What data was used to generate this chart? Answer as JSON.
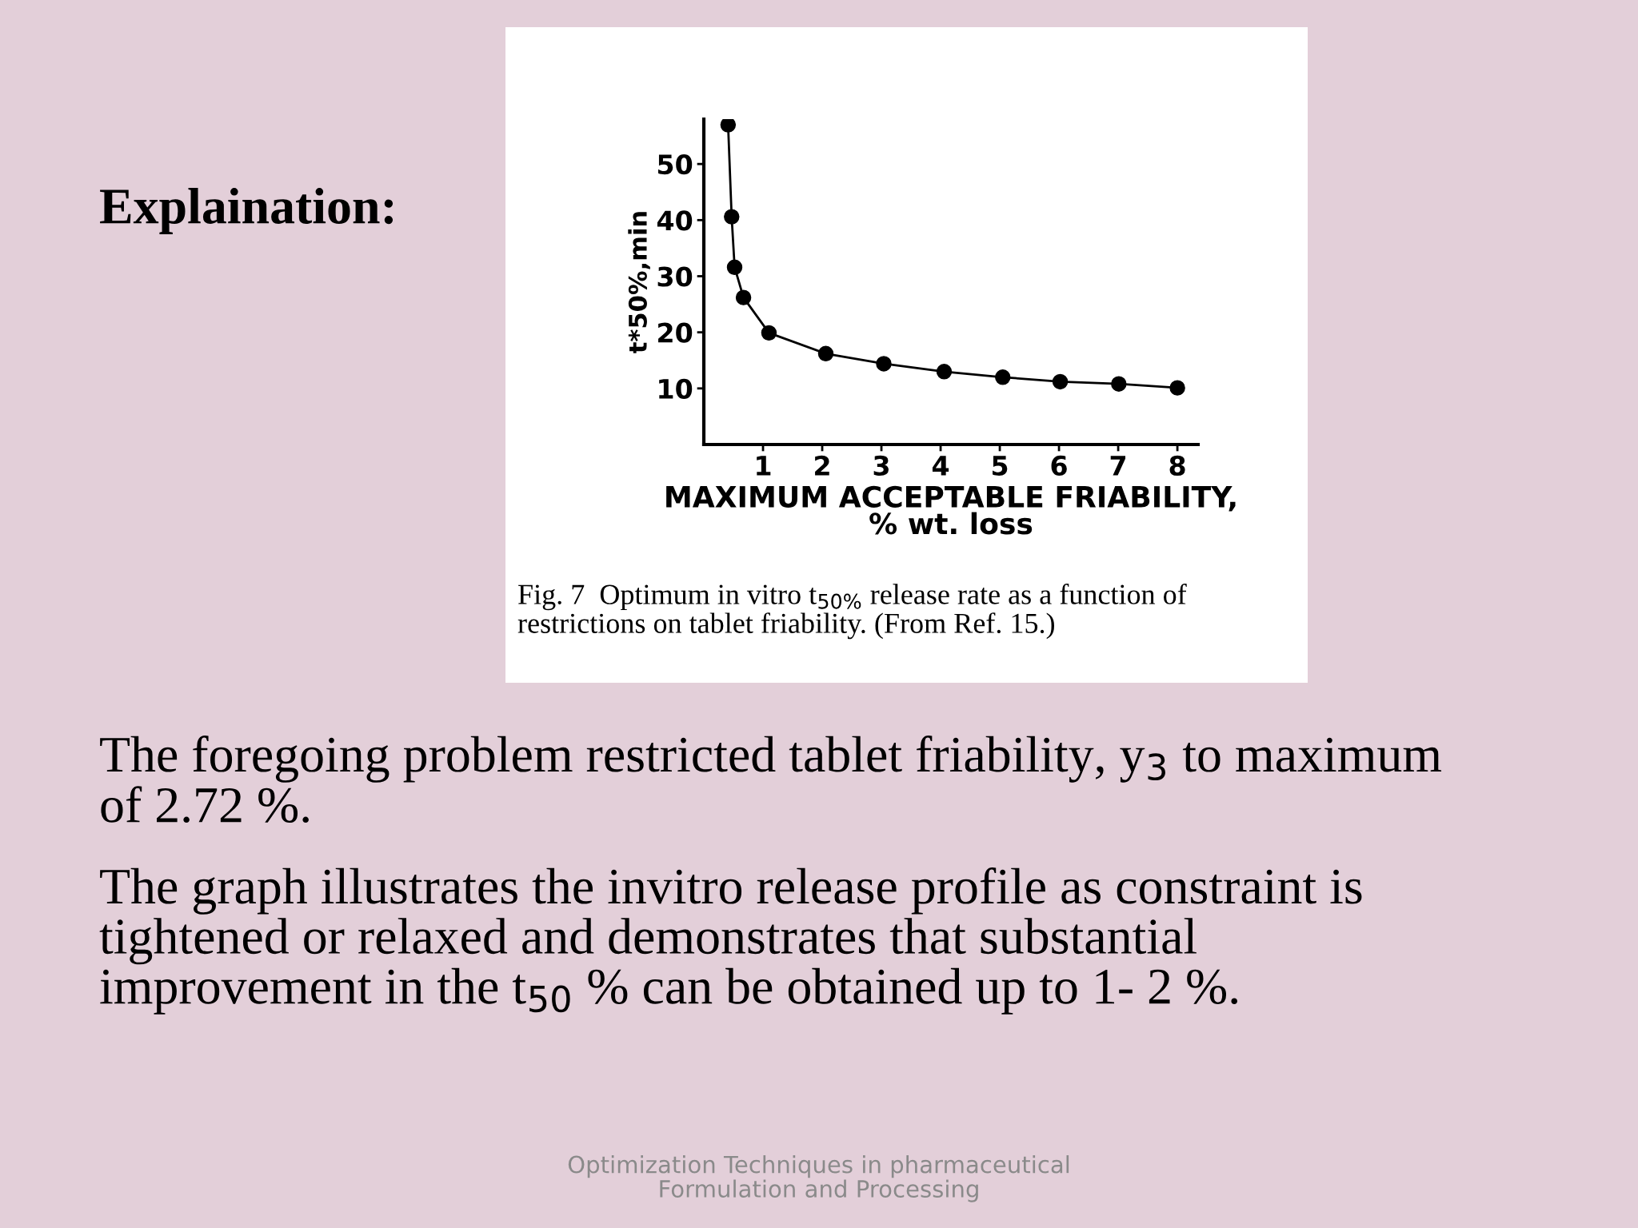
{
  "chart_data": {
    "type": "line",
    "xlabel": "MAXIMUM ACCEPTABLE FRIABILITY,\n% wt. loss",
    "ylabel": "t*50%,min",
    "annotations": [
      "Explaination:",
      "Fig. 7  Optimum in vitro t$_{50%}$ release rate as a function of\nrestrictions on tablet friability. (From Ref. 15.)",
      "The foregoing problem restricted tablet friability, y$_{3}$ to maximum\nof 2.72 %.",
      "The graph illustrates the invitro release profile as constraint is\ntightened or relaxed and demonstrates that substantial\nimprovement in the t$_{50}$ % can be obtained up to 1- 2 %.",
      "Optimization Techniques in pharmaceutical\nFormulation and Processing"
    ],
    "x": [
      0.41,
      0.47,
      0.52,
      0.67,
      1.1,
      2.06,
      3.04,
      4.06,
      5.05,
      6.02,
      7.01,
      8.0
    ],
    "series": [
      {
        "color": "#000000",
        "values": [
          57,
          40.6,
          31.6,
          26.2,
          19.9,
          16.2,
          14.4,
          13.0,
          12.0,
          11.2,
          10.8,
          10.1
        ]
      }
    ],
    "xlim": [
      0,
      8.35
    ],
    "ylim": [
      0,
      58
    ],
    "xticks": [
      1,
      2,
      3,
      4,
      5,
      6,
      7,
      8
    ],
    "yticks": [
      10,
      20,
      30,
      40,
      50
    ],
    "marker": "circle",
    "line_style": "solid",
    "grid": false,
    "legend": false
  }
}
